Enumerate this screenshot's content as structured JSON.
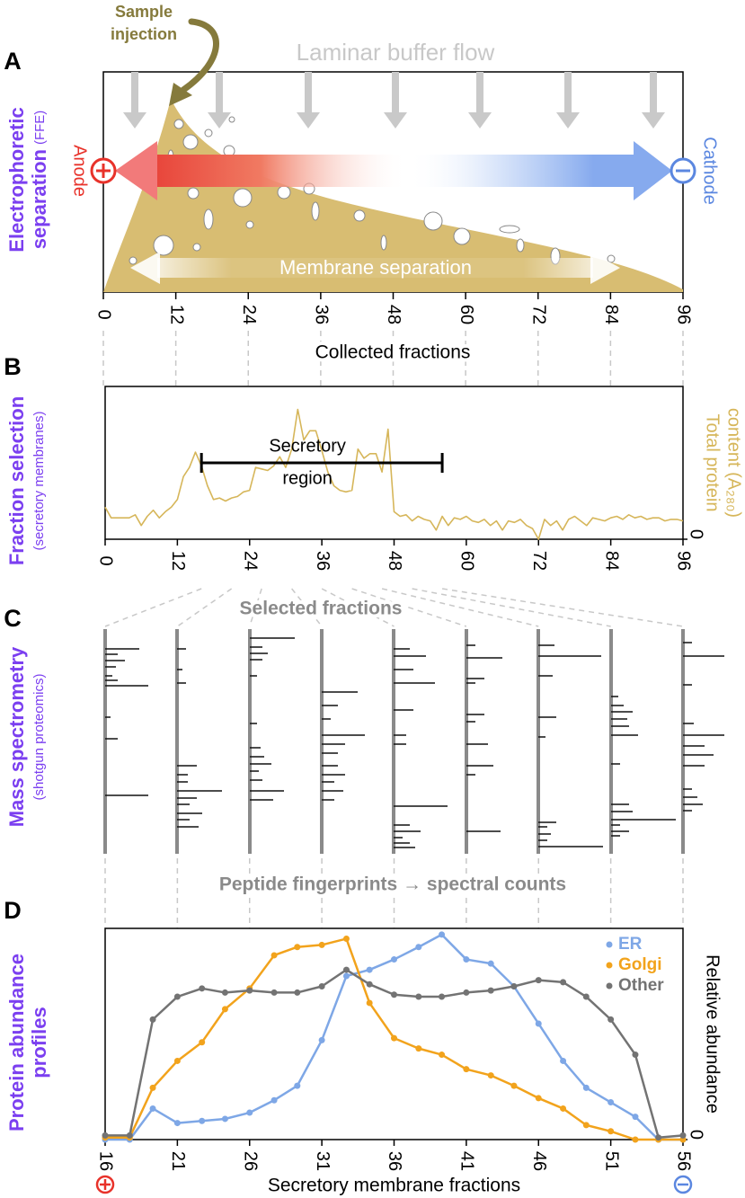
{
  "panels": [
    {
      "letter": "A",
      "side_label": [
        "Electrophoretic",
        "separation"
      ],
      "side_note": "(FFE)"
    },
    {
      "letter": "B",
      "side_label": [
        "Fraction selection"
      ],
      "side_note": "(secretory membranes)"
    },
    {
      "letter": "C",
      "side_label": [
        "Mass spectrometry"
      ],
      "side_note": "(shotgun proteomics)"
    },
    {
      "letter": "D",
      "side_label": [
        "Protein abundance",
        "profiles"
      ]
    }
  ],
  "diagram_a": {
    "sample_label": [
      "Sample",
      "injection"
    ],
    "flow_label": "Laminar buffer flow",
    "anode_label": "Anode",
    "cathode_label": "Cathode",
    "separation_label": "Membrane separation",
    "x_label": "Collected fractions",
    "xlim": [
      0,
      96
    ],
    "xticks": [
      0,
      12,
      24,
      36,
      48,
      60,
      72,
      84,
      96
    ]
  },
  "diagram_c": {
    "top_label": "Selected fractions",
    "bottom_label": "Peptide fingerprints → spectral counts"
  },
  "chart_data": [
    {
      "type": "line",
      "color": "#d6b65a",
      "x": [
        0,
        1,
        2,
        3,
        4,
        5,
        6,
        7,
        8,
        9,
        10,
        11,
        12,
        13,
        14,
        15,
        16,
        17,
        18,
        19,
        20,
        21,
        22,
        23,
        24,
        25,
        26,
        27,
        28,
        29,
        30,
        31,
        32,
        33,
        34,
        35,
        36,
        37,
        38,
        39,
        40,
        41,
        42,
        43,
        44,
        45,
        46,
        47,
        48,
        49,
        50,
        51,
        52,
        53,
        54,
        55,
        56,
        57,
        58,
        59,
        60,
        61,
        62,
        63,
        64,
        65,
        66,
        67,
        68,
        69,
        70,
        71,
        72,
        73,
        74,
        75,
        76,
        77,
        78,
        79,
        80,
        81,
        82,
        83,
        84,
        85,
        86,
        87,
        88,
        89,
        90,
        91,
        92,
        93,
        94,
        95,
        96
      ],
      "values": [
        2.1,
        1.4,
        1.4,
        1.4,
        1.4,
        1.6,
        0.9,
        1.5,
        1.9,
        1.4,
        1.8,
        2.1,
        2.6,
        4.1,
        4.7,
        5.7,
        4.8,
        3.5,
        2.6,
        2.7,
        2.5,
        2.7,
        2.8,
        3.1,
        3.2,
        4.7,
        4.6,
        4.5,
        4.8,
        5.4,
        4.7,
        5.9,
        8.5,
        6.5,
        7.1,
        7.1,
        5.8,
        4.4,
        3.5,
        3.2,
        3.1,
        3.2,
        5.9,
        5.3,
        5.6,
        5.6,
        4.4,
        7.2,
        1.8,
        1.5,
        1.6,
        1.2,
        1.5,
        1.3,
        1.2,
        0.6,
        1.5,
        0.9,
        1.4,
        1.3,
        1.5,
        1.2,
        1.1,
        1.3,
        0.9,
        1.2,
        0.6,
        1.2,
        1.1,
        1.3,
        0.9,
        0.7,
        0,
        1.3,
        0.9,
        1.2,
        0.6,
        1.3,
        1.5,
        1.2,
        0.9,
        1.4,
        1.3,
        1.2,
        1.4,
        1.5,
        1.3,
        1.6,
        1.4,
        1.5,
        1.3,
        1.4,
        1.4,
        1.2,
        1.3,
        1.3,
        1.2
      ],
      "xlim": [
        0,
        96
      ],
      "xticks": [
        0,
        12,
        24,
        36,
        48,
        60,
        72,
        84,
        96
      ],
      "ylim": [
        0,
        10
      ],
      "yticks": [
        0
      ],
      "y_label": [
        "Total protein",
        "content (A₂₈₀)"
      ],
      "annotation": {
        "label": [
          "Secretory",
          "region"
        ],
        "start": 16,
        "end": 56
      }
    },
    {
      "type": "line",
      "markers": true,
      "legend": "upper right",
      "x": [
        16,
        17.7,
        19.3,
        21,
        22.7,
        24.3,
        26,
        27.7,
        29.3,
        31,
        32.7,
        34.3,
        36,
        37.7,
        39.3,
        41,
        42.7,
        44.3,
        46,
        47.7,
        49.3,
        51,
        52.7,
        54.3,
        56
      ],
      "series": [
        {
          "name": "ER",
          "color": "#7ea7e6",
          "values": [
            0,
            0,
            0.15,
            0.08,
            0.09,
            0.1,
            0.13,
            0.19,
            0.26,
            0.48,
            0.79,
            0.82,
            0.87,
            0.93,
            0.99,
            0.87,
            0.85,
            0.74,
            0.56,
            0.38,
            0.25,
            0.18,
            0.11,
            0,
            0
          ]
        },
        {
          "name": "Golgi",
          "color": "#f2a31c",
          "values": [
            0.01,
            0.01,
            0.25,
            0.38,
            0.47,
            0.63,
            0.73,
            0.89,
            0.93,
            0.94,
            0.97,
            0.66,
            0.49,
            0.44,
            0.41,
            0.34,
            0.31,
            0.26,
            0.2,
            0.15,
            0.07,
            0.04,
            0,
            0,
            0
          ]
        },
        {
          "name": "Other",
          "color": "#737373",
          "values": [
            0.02,
            0.02,
            0.58,
            0.69,
            0.73,
            0.71,
            0.72,
            0.71,
            0.71,
            0.74,
            0.82,
            0.75,
            0.7,
            0.69,
            0.69,
            0.71,
            0.72,
            0.74,
            0.77,
            0.76,
            0.69,
            0.58,
            0.41,
            0.01,
            0.02
          ]
        }
      ],
      "xlim": [
        16,
        56
      ],
      "xticks": [
        16,
        21,
        26,
        31,
        36,
        41,
        46,
        51,
        56
      ],
      "ylim": [
        0,
        1.02
      ],
      "yticks": [
        0
      ],
      "y_label": [
        "Relative abundance"
      ],
      "x_label": "Secretory membrane fractions"
    }
  ]
}
